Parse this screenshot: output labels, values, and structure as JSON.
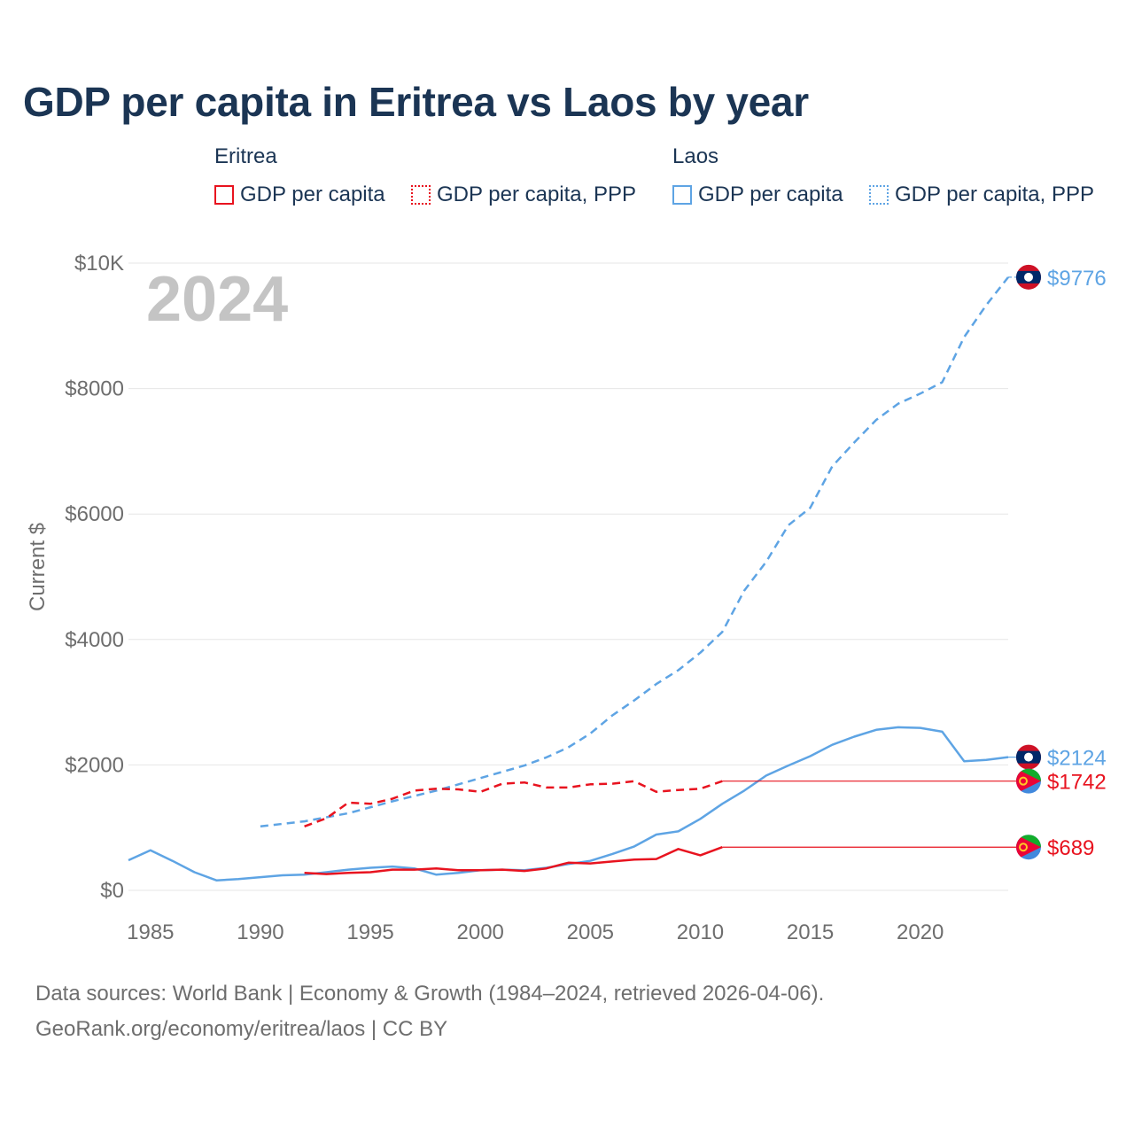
{
  "title": "GDP per capita in Eritrea vs Laos by year",
  "legend": {
    "eritrea": {
      "label": "Eritrea",
      "items": [
        "GDP per capita",
        "GDP per capita, PPP"
      ]
    },
    "laos": {
      "label": "Laos",
      "items": [
        "GDP per capita",
        "GDP per capita, PPP"
      ]
    }
  },
  "colors": {
    "eritrea": "#e8131f",
    "laos": "#5ea4e4",
    "grid": "#e6e6e6",
    "axis_text": "#6e6e6e",
    "year_watermark": "#c4c4c4",
    "title": "#1b3554"
  },
  "footer": {
    "line1": "Data sources: World Bank | Economy & Growth (1984–2024, retrieved 2026-04-06).",
    "line2": "GeoRank.org/economy/eritrea/laos | CC BY"
  },
  "chart_data": {
    "type": "line",
    "title": "GDP per capita in Eritrea vs Laos by year",
    "current_year_label": "2024",
    "ylabel": "Current $",
    "xlabel": "",
    "xlim": [
      1984,
      2024
    ],
    "ylim": [
      0,
      10000
    ],
    "x_ticks": [
      1985,
      1990,
      1995,
      2000,
      2005,
      2010,
      2015,
      2020
    ],
    "x_tick_labels": [
      "1985",
      "1990",
      "1995",
      "2000",
      "2005",
      "2010",
      "2015",
      "2020"
    ],
    "y_ticks": [
      0,
      2000,
      4000,
      6000,
      8000,
      10000
    ],
    "y_tick_labels": [
      "$0",
      "$2000",
      "$4000",
      "$6000",
      "$8000",
      "$10K"
    ],
    "grid": true,
    "series": [
      {
        "name": "Laos GDP per capita, PPP",
        "country": "laos",
        "dashed": true,
        "end_label": "$9776",
        "end_value": 9776,
        "points": [
          [
            1990,
            1020
          ],
          [
            1992,
            1100
          ],
          [
            1994,
            1230
          ],
          [
            1996,
            1420
          ],
          [
            1998,
            1590
          ],
          [
            2000,
            1790
          ],
          [
            2002,
            1990
          ],
          [
            2003,
            2120
          ],
          [
            2004,
            2280
          ],
          [
            2005,
            2500
          ],
          [
            2006,
            2790
          ],
          [
            2007,
            3030
          ],
          [
            2008,
            3290
          ],
          [
            2009,
            3510
          ],
          [
            2010,
            3790
          ],
          [
            2011,
            4120
          ],
          [
            2012,
            4780
          ],
          [
            2013,
            5240
          ],
          [
            2014,
            5820
          ],
          [
            2015,
            6100
          ],
          [
            2016,
            6760
          ],
          [
            2017,
            7140
          ],
          [
            2018,
            7500
          ],
          [
            2019,
            7760
          ],
          [
            2020,
            7920
          ],
          [
            2021,
            8100
          ],
          [
            2022,
            8820
          ],
          [
            2023,
            9330
          ],
          [
            2024,
            9776
          ]
        ]
      },
      {
        "name": "Laos GDP per capita",
        "country": "laos",
        "dashed": false,
        "end_label": "$2124",
        "end_value": 2124,
        "points": [
          [
            1984,
            480
          ],
          [
            1985,
            640
          ],
          [
            1986,
            470
          ],
          [
            1987,
            290
          ],
          [
            1988,
            160
          ],
          [
            1989,
            180
          ],
          [
            1990,
            210
          ],
          [
            1991,
            240
          ],
          [
            1992,
            250
          ],
          [
            1993,
            290
          ],
          [
            1994,
            330
          ],
          [
            1995,
            360
          ],
          [
            1996,
            380
          ],
          [
            1997,
            350
          ],
          [
            1998,
            250
          ],
          [
            1999,
            280
          ],
          [
            2000,
            320
          ],
          [
            2001,
            330
          ],
          [
            2002,
            320
          ],
          [
            2003,
            360
          ],
          [
            2004,
            420
          ],
          [
            2005,
            470
          ],
          [
            2006,
            580
          ],
          [
            2007,
            700
          ],
          [
            2008,
            890
          ],
          [
            2009,
            940
          ],
          [
            2010,
            1140
          ],
          [
            2011,
            1380
          ],
          [
            2012,
            1590
          ],
          [
            2013,
            1830
          ],
          [
            2014,
            1990
          ],
          [
            2015,
            2140
          ],
          [
            2016,
            2320
          ],
          [
            2017,
            2450
          ],
          [
            2018,
            2560
          ],
          [
            2019,
            2600
          ],
          [
            2020,
            2590
          ],
          [
            2021,
            2530
          ],
          [
            2022,
            2060
          ],
          [
            2023,
            2080
          ],
          [
            2024,
            2124
          ]
        ]
      },
      {
        "name": "Eritrea GDP per capita, PPP",
        "country": "eritrea",
        "dashed": true,
        "end_label": "$1742",
        "end_value": 1742,
        "last_data_year": 2011,
        "points": [
          [
            1992,
            1020
          ],
          [
            1993,
            1150
          ],
          [
            1994,
            1400
          ],
          [
            1995,
            1380
          ],
          [
            1996,
            1460
          ],
          [
            1997,
            1590
          ],
          [
            1998,
            1620
          ],
          [
            1999,
            1610
          ],
          [
            2000,
            1570
          ],
          [
            2001,
            1700
          ],
          [
            2002,
            1720
          ],
          [
            2003,
            1640
          ],
          [
            2004,
            1640
          ],
          [
            2005,
            1690
          ],
          [
            2006,
            1700
          ],
          [
            2007,
            1740
          ],
          [
            2008,
            1570
          ],
          [
            2009,
            1600
          ],
          [
            2010,
            1620
          ],
          [
            2011,
            1742
          ]
        ]
      },
      {
        "name": "Eritrea GDP per capita",
        "country": "eritrea",
        "dashed": false,
        "end_label": "$689",
        "end_value": 689,
        "last_data_year": 2011,
        "points": [
          [
            1992,
            280
          ],
          [
            1993,
            260
          ],
          [
            1994,
            280
          ],
          [
            1995,
            290
          ],
          [
            1996,
            330
          ],
          [
            1997,
            330
          ],
          [
            1998,
            350
          ],
          [
            1999,
            320
          ],
          [
            2000,
            320
          ],
          [
            2001,
            330
          ],
          [
            2002,
            310
          ],
          [
            2003,
            350
          ],
          [
            2004,
            440
          ],
          [
            2005,
            430
          ],
          [
            2006,
            460
          ],
          [
            2007,
            490
          ],
          [
            2008,
            500
          ],
          [
            2009,
            660
          ],
          [
            2010,
            560
          ],
          [
            2011,
            689
          ]
        ]
      }
    ]
  }
}
